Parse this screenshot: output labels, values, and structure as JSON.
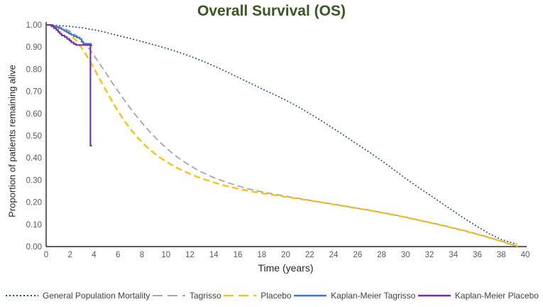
{
  "title": "Overall Survival (OS)",
  "colors": {
    "title": "#385723",
    "axis_line": "#000000",
    "tick_text": "#595959",
    "axis_title_text": "#262626",
    "legend_text": "#404040"
  },
  "axes": {
    "x": {
      "label": "Time (years)",
      "ticks": [
        "0",
        "2",
        "4",
        "6",
        "8",
        "10",
        "12",
        "14",
        "16",
        "18",
        "20",
        "22",
        "24",
        "26",
        "28",
        "30",
        "32",
        "34",
        "36",
        "38",
        "40"
      ]
    },
    "y": {
      "label": "Proportion of patients remaining alive",
      "ticks": [
        "0.00",
        "0.10",
        "0.20",
        "0.30",
        "0.40",
        "0.50",
        "0.60",
        "0.70",
        "0.80",
        "0.90",
        "1.00"
      ]
    }
  },
  "legend": {
    "items": [
      {
        "label": "General Population Mortality",
        "color": "#264478",
        "style": "dotted"
      },
      {
        "label": "Tagrisso",
        "color": "#A6A6A6",
        "style": "dashed"
      },
      {
        "label": "Placebo",
        "color": "#FFC000",
        "style": "dashed"
      },
      {
        "label": "Kaplan-Meier Tagrisso",
        "color": "#4472C4",
        "style": "solid"
      },
      {
        "label": "Kaplan-Meier Placebo",
        "color": "#7030A0",
        "style": "solid"
      }
    ]
  },
  "chart_data": {
    "type": "line",
    "title": "Overall Survival (OS)",
    "xlabel": "Time (years)",
    "ylabel": "Proportion of patients remaining alive",
    "xlim": [
      0,
      40
    ],
    "ylim": [
      0,
      1
    ],
    "grid": false,
    "legend_position": "bottom",
    "series": [
      {
        "name": "General Population Mortality",
        "color": "#264478",
        "dash": "dotted",
        "width": 1.7,
        "step": false,
        "points": [
          [
            0,
            1
          ],
          [
            1,
            0.997
          ],
          [
            2,
            0.993
          ],
          [
            3,
            0.987
          ],
          [
            4,
            0.978
          ],
          [
            5,
            0.966
          ],
          [
            6,
            0.952
          ],
          [
            7,
            0.939
          ],
          [
            8,
            0.925
          ],
          [
            9,
            0.91
          ],
          [
            10,
            0.895
          ],
          [
            11,
            0.878
          ],
          [
            12,
            0.859
          ],
          [
            13,
            0.838
          ],
          [
            14,
            0.815
          ],
          [
            15,
            0.79
          ],
          [
            16,
            0.764
          ],
          [
            17,
            0.738
          ],
          [
            18,
            0.712
          ],
          [
            19,
            0.687
          ],
          [
            20,
            0.661
          ],
          [
            21,
            0.632
          ],
          [
            22,
            0.6
          ],
          [
            23,
            0.567
          ],
          [
            24,
            0.532
          ],
          [
            25,
            0.497
          ],
          [
            26,
            0.461
          ],
          [
            27,
            0.425
          ],
          [
            28,
            0.388
          ],
          [
            29,
            0.348
          ],
          [
            30,
            0.308
          ],
          [
            31,
            0.27
          ],
          [
            32,
            0.234
          ],
          [
            33,
            0.197
          ],
          [
            34,
            0.16
          ],
          [
            35,
            0.124
          ],
          [
            36,
            0.09
          ],
          [
            37,
            0.058
          ],
          [
            38,
            0.032
          ],
          [
            39,
            0.015
          ],
          [
            39.3,
            0.012
          ]
        ]
      },
      {
        "name": "Tagrisso",
        "color": "#A6A6A6",
        "dash": "dashed",
        "width": 1.8,
        "step": false,
        "points": [
          [
            0,
            1
          ],
          [
            0.5,
            0.998
          ],
          [
            1,
            0.993
          ],
          [
            1.5,
            0.984
          ],
          [
            2,
            0.971
          ],
          [
            2.5,
            0.953
          ],
          [
            3,
            0.93
          ],
          [
            3.5,
            0.899
          ],
          [
            4,
            0.862
          ],
          [
            4.5,
            0.822
          ],
          [
            5,
            0.782
          ],
          [
            5.5,
            0.741
          ],
          [
            6,
            0.701
          ],
          [
            6.5,
            0.663
          ],
          [
            7,
            0.626
          ],
          [
            7.5,
            0.591
          ],
          [
            8,
            0.558
          ],
          [
            8.5,
            0.527
          ],
          [
            9,
            0.498
          ],
          [
            9.5,
            0.471
          ],
          [
            10,
            0.446
          ],
          [
            10.5,
            0.423
          ],
          [
            11,
            0.402
          ],
          [
            11.5,
            0.383
          ],
          [
            12,
            0.366
          ],
          [
            12.5,
            0.35
          ],
          [
            13,
            0.336
          ],
          [
            13.5,
            0.323
          ],
          [
            14,
            0.311
          ],
          [
            15,
            0.291
          ],
          [
            16,
            0.274
          ],
          [
            17,
            0.259
          ],
          [
            18,
            0.247
          ],
          [
            19,
            0.237
          ],
          [
            20,
            0.227
          ],
          [
            21,
            0.218
          ],
          [
            22,
            0.209
          ],
          [
            23,
            0.2
          ],
          [
            24,
            0.191
          ],
          [
            25,
            0.182
          ],
          [
            26,
            0.173
          ],
          [
            27,
            0.164
          ],
          [
            28,
            0.154
          ],
          [
            29,
            0.144
          ],
          [
            30,
            0.133
          ],
          [
            31,
            0.121
          ],
          [
            32,
            0.109
          ],
          [
            33,
            0.097
          ],
          [
            34,
            0.084
          ],
          [
            35,
            0.071
          ],
          [
            36,
            0.056
          ],
          [
            37,
            0.041
          ],
          [
            38,
            0.025
          ],
          [
            38.7,
            0.012
          ],
          [
            39.3,
            0.003
          ]
        ]
      },
      {
        "name": "Placebo",
        "color": "#FFC000",
        "dash": "dashed",
        "width": 2.3,
        "step": false,
        "points": [
          [
            0,
            1
          ],
          [
            0.5,
            0.997
          ],
          [
            1,
            0.989
          ],
          [
            1.5,
            0.977
          ],
          [
            2,
            0.957
          ],
          [
            2.5,
            0.929
          ],
          [
            3,
            0.894
          ],
          [
            3.5,
            0.851
          ],
          [
            4,
            0.804
          ],
          [
            4.5,
            0.754
          ],
          [
            5,
            0.704
          ],
          [
            5.5,
            0.656
          ],
          [
            6,
            0.611
          ],
          [
            6.5,
            0.57
          ],
          [
            7,
            0.533
          ],
          [
            7.5,
            0.5
          ],
          [
            8,
            0.471
          ],
          [
            8.5,
            0.445
          ],
          [
            9,
            0.422
          ],
          [
            9.5,
            0.402
          ],
          [
            10,
            0.384
          ],
          [
            10.5,
            0.368
          ],
          [
            11,
            0.353
          ],
          [
            11.5,
            0.34
          ],
          [
            12,
            0.328
          ],
          [
            12.5,
            0.317
          ],
          [
            13,
            0.307
          ],
          [
            13.5,
            0.298
          ],
          [
            14,
            0.289
          ],
          [
            15,
            0.274
          ],
          [
            16,
            0.261
          ],
          [
            17,
            0.25
          ],
          [
            18,
            0.241
          ],
          [
            19,
            0.232
          ],
          [
            20,
            0.224
          ],
          [
            21,
            0.216
          ],
          [
            22,
            0.208
          ],
          [
            23,
            0.199
          ],
          [
            24,
            0.19
          ],
          [
            25,
            0.181
          ],
          [
            26,
            0.172
          ],
          [
            27,
            0.163
          ],
          [
            28,
            0.153
          ],
          [
            29,
            0.143
          ],
          [
            30,
            0.132
          ],
          [
            31,
            0.12
          ],
          [
            32,
            0.108
          ],
          [
            33,
            0.096
          ],
          [
            34,
            0.083
          ],
          [
            35,
            0.07
          ],
          [
            36,
            0.055
          ],
          [
            37,
            0.04
          ],
          [
            38,
            0.024
          ],
          [
            38.7,
            0.011
          ],
          [
            39.4,
            0.002
          ]
        ]
      },
      {
        "name": "Kaplan-Meier Tagrisso",
        "color": "#4472C4",
        "dash": "solid",
        "width": 2.1,
        "step": true,
        "points": [
          [
            0,
            1
          ],
          [
            0.55,
            0.995
          ],
          [
            0.8,
            0.99
          ],
          [
            1.05,
            0.985
          ],
          [
            1.3,
            0.979
          ],
          [
            1.5,
            0.973
          ],
          [
            1.7,
            0.967
          ],
          [
            1.9,
            0.961
          ],
          [
            2.1,
            0.955
          ],
          [
            2.3,
            0.949
          ],
          [
            2.55,
            0.943
          ],
          [
            2.8,
            0.937
          ],
          [
            2.95,
            0.924
          ],
          [
            3.1,
            0.915
          ],
          [
            3.75,
            0.907
          ],
          [
            3.85,
            0.907
          ]
        ]
      },
      {
        "name": "Kaplan-Meier Placebo",
        "color": "#7030A0",
        "dash": "solid",
        "width": 2.1,
        "step": true,
        "points": [
          [
            0,
            1
          ],
          [
            0.45,
            0.993
          ],
          [
            0.65,
            0.985
          ],
          [
            0.85,
            0.977
          ],
          [
            1,
            0.968
          ],
          [
            1.15,
            0.96
          ],
          [
            1.3,
            0.952
          ],
          [
            1.55,
            0.945
          ],
          [
            1.75,
            0.937
          ],
          [
            1.95,
            0.929
          ],
          [
            2.1,
            0.921
          ],
          [
            2.3,
            0.914
          ],
          [
            2.5,
            0.909
          ],
          [
            3.7,
            0.455
          ],
          [
            3.82,
            0.455
          ]
        ]
      }
    ]
  }
}
